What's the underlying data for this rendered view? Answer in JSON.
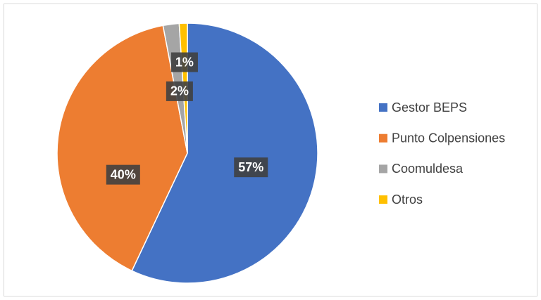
{
  "chart_data": {
    "type": "pie",
    "categories": [
      "Gestor BEPS",
      "Punto Colpensiones",
      "Coomuldesa",
      "Otros"
    ],
    "values": [
      57,
      40,
      2,
      1
    ],
    "value_labels": [
      "57%",
      "40%",
      "2%",
      "1%"
    ],
    "colors": [
      "#4472c4",
      "#ed7d31",
      "#a5a5a5",
      "#ffc000"
    ],
    "legend": "right"
  }
}
